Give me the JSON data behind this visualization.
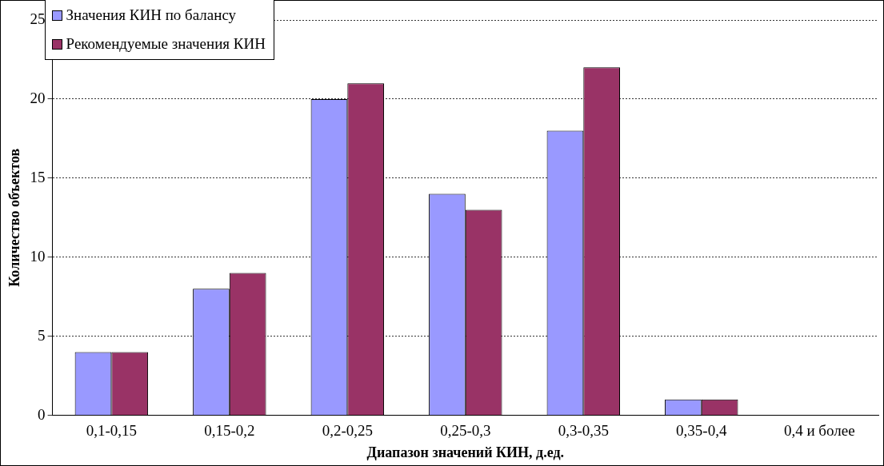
{
  "chart_data": {
    "type": "bar",
    "xlabel": "Диапазон значений КИН, д.ед.",
    "ylabel": "Количество объектов",
    "categories": [
      "0,1-0,15",
      "0,15-0,2",
      "0,2-0,25",
      "0,25-0,3",
      "0,3-0,35",
      "0,35-0,4",
      "0,4 и более"
    ],
    "series": [
      {
        "name": "Значения КИН по балансу",
        "color": "#9999ff",
        "values": [
          4,
          8,
          20,
          14,
          18,
          1,
          0
        ]
      },
      {
        "name": "Рекомендуемые значения КИН",
        "color": "#993366",
        "values": [
          4,
          9,
          21,
          13,
          22,
          1,
          0
        ]
      }
    ],
    "ylim": [
      0,
      25
    ],
    "yticks": [
      0,
      5,
      10,
      15,
      20,
      25
    ],
    "grid": "y",
    "legend": "top left"
  }
}
